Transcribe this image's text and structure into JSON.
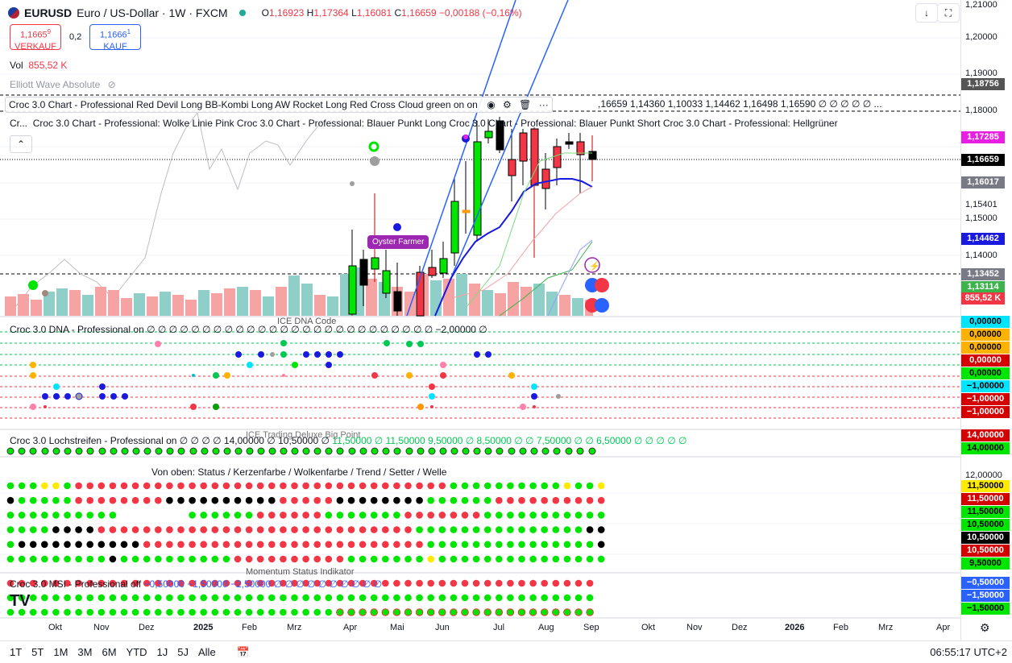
{
  "header": {
    "symbol": "EURUSD",
    "title": "Euro / US-Dollar · 1W · FXCM",
    "o_label": "O",
    "o": "1,16923",
    "h_label": "H",
    "h": "1,17364",
    "l_label": "L",
    "l": "1,16081",
    "c_label": "C",
    "c": "1,16659",
    "change": "−0,00188 (−0,16%)"
  },
  "trade": {
    "sell_price": "1,1665",
    "sell_sup": "9",
    "sell_label": "VERKAUF",
    "spread": "0,2",
    "buy_price": "1,1666",
    "buy_sup": "1",
    "buy_label": "KAUF"
  },
  "volume": {
    "label": "Vol",
    "value": "855,52 K"
  },
  "indicators": {
    "elliott": "Elliott Wave Absolute",
    "croc_long": "Croc 3.0 Chart - Professional Red Devil Long BB-Kombi Long AW Rocket Long Red Cross Cloud green on on",
    "croc_long_values": ",16659  1,14360  1,10033  1,14462  1,16498  1,16590  ∅ ∅ ∅ ∅ ∅ ...",
    "croc_prefix": "Cr...",
    "croc_second": "Croc 3.0 Chart - Professional: Wolke Linie Pink Croc 3.0 Chart - Professional: Blauer Punkt Long Croc 3.0 Chart - Professional: Blauer Punkt Short Croc 3.0 Chart - Professional: Hellgrüner",
    "oyster": "Oyster Farmer",
    "dna": "Croc 3.0 DNA - Professional on  ∅ ∅ ∅ ∅ ∅ ∅ ∅ ∅ ∅ ∅ ∅ ∅ ∅ ∅ ∅ ∅ ∅ ∅ ∅ ∅ ∅ ∅ ∅ ∅ ∅ ∅  −2,00000  ∅",
    "dna_sub": "ICE DNA Code",
    "loch": "Croc 3.0 Lochstreifen - Professional on  ∅ ∅ ∅ ∅ 14,00000  ∅ 10,50000  ∅",
    "loch_values": "11,50000  ∅  11,50000  9,50000  ∅  8,50000  ∅ ∅  7,50000  ∅ ∅  6,50000  ∅ ∅ ∅ ∅ ∅",
    "loch_sub": "ICE Trading Deluxe Big Point",
    "von_oben": "Von oben: Status / Kerzenfarbe / Wolkenfarbe / Trend / Setter / Welle",
    "msi": "Croc 3.0 MSI - Professional off",
    "msi_values": "−0,50000  −1,50000  −2,50000  ∅ ∅ ∅ ∅ ∅ ∅ ∅ ∅ ∅ ∅",
    "msi_sub": "Momentum Status Indikator"
  },
  "price_axis": {
    "labels": [
      "1,21000",
      "1,20000",
      "1,19000",
      "1,18000",
      "1,15401",
      "1,15000",
      "1,14000"
    ],
    "tags": [
      {
        "text": "1,18756",
        "color": "#555555"
      },
      {
        "text": "1,17285",
        "color": "#e91ee3"
      },
      {
        "text": "1,16659",
        "color": "#000000"
      },
      {
        "text": "1,16017",
        "color": "#787b86"
      },
      {
        "text": "1,14462",
        "color": "#1a1adf"
      },
      {
        "text": "1,13452",
        "color": "#787b86"
      },
      {
        "text": "1,13114",
        "color": "#3cb44b"
      },
      {
        "text": "855,52 K",
        "color": "#f23645"
      }
    ],
    "dna_tags": [
      {
        "text": "0,00000",
        "color": "#00e5ff",
        "fg": "#000"
      },
      {
        "text": "0,00000",
        "color": "#ffb300",
        "fg": "#000"
      },
      {
        "text": "0,00000",
        "color": "#ffb300",
        "fg": "#000"
      },
      {
        "text": "0,00000",
        "color": "#d50000",
        "fg": "#fff"
      },
      {
        "text": "0,00000",
        "color": "#00e600",
        "fg": "#000"
      },
      {
        "text": "−1,00000",
        "color": "#00e5ff",
        "fg": "#000"
      },
      {
        "text": "−1,00000",
        "color": "#d50000",
        "fg": "#fff"
      },
      {
        "text": "−1,00000",
        "color": "#d50000",
        "fg": "#fff"
      }
    ],
    "loch_tags": [
      {
        "text": "14,00000",
        "color": "#d50000",
        "fg": "#fff"
      },
      {
        "text": "14,00000",
        "color": "#00e600",
        "fg": "#000"
      }
    ],
    "status_label": "12,00000",
    "status_tags": [
      {
        "text": "11,50000",
        "color": "#ffea00",
        "fg": "#000"
      },
      {
        "text": "11,50000",
        "color": "#d50000",
        "fg": "#fff"
      },
      {
        "text": "11,50000",
        "color": "#00e600",
        "fg": "#000"
      },
      {
        "text": "10,50000",
        "color": "#00e600",
        "fg": "#000"
      },
      {
        "text": "10,50000",
        "color": "#000000",
        "fg": "#fff"
      },
      {
        "text": "10,50000",
        "color": "#d50000",
        "fg": "#fff"
      },
      {
        "text": "9,50000",
        "color": "#00e600",
        "fg": "#000"
      }
    ],
    "msi_tags": [
      {
        "text": "−0,50000",
        "color": "#2962ff",
        "fg": "#fff"
      },
      {
        "text": "−1,50000",
        "color": "#2962ff",
        "fg": "#fff"
      },
      {
        "text": "−1,50000",
        "color": "#00e600",
        "fg": "#000"
      }
    ]
  },
  "time_axis": [
    "Okt",
    "Nov",
    "Dez",
    "2025",
    "Feb",
    "Mrz",
    "Apr",
    "Mai",
    "Jun",
    "Jul",
    "Aug",
    "Sep",
    "Okt",
    "Nov",
    "Dez",
    "2026",
    "Feb",
    "Mrz",
    "Apr"
  ],
  "bottom_bar": {
    "ranges": [
      "1T",
      "5T",
      "1M",
      "3M",
      "6M",
      "YTD",
      "1J",
      "5J",
      "Alle"
    ],
    "clock": "06:55:17 UTC+2"
  },
  "colors": {
    "up": "#00c853",
    "down": "#f23645",
    "accent": "#2962ff"
  }
}
